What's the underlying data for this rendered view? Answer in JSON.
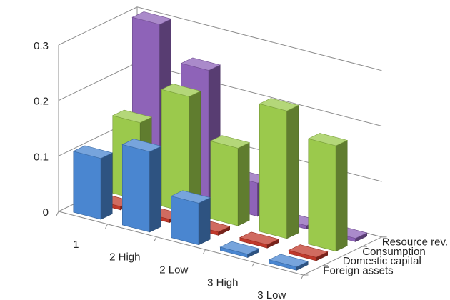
{
  "chart_data": {
    "type": "bar",
    "subtype": "3d-column",
    "title": "",
    "xlabel": "",
    "ylabel": "",
    "categories": [
      "1",
      "2 High",
      "2 Low",
      "3 High",
      "3 Low"
    ],
    "series": [
      {
        "name": "Foreign assets",
        "color": "#4a86d0",
        "values": [
          0.11,
          0.145,
          0.075,
          0.0,
          0.0
        ]
      },
      {
        "name": "Domestic capital",
        "color": "#c0392b",
        "values": [
          0.0,
          0.0,
          0.0,
          0.0,
          0.0
        ]
      },
      {
        "name": "Consumption",
        "color": "#9bc94c",
        "values": [
          0.14,
          0.21,
          0.14,
          0.23,
          0.19
        ]
      },
      {
        "name": "Resource rev.",
        "color": "#8e63b8",
        "values": [
          0.3,
          0.24,
          0.06,
          0.0,
          0.0
        ]
      }
    ],
    "y_ticks": [
      "0",
      "0.1",
      "0.2",
      "0.3"
    ],
    "ylim": [
      0,
      0.3
    ],
    "grid": true,
    "legend": "depth-axis-labels"
  }
}
